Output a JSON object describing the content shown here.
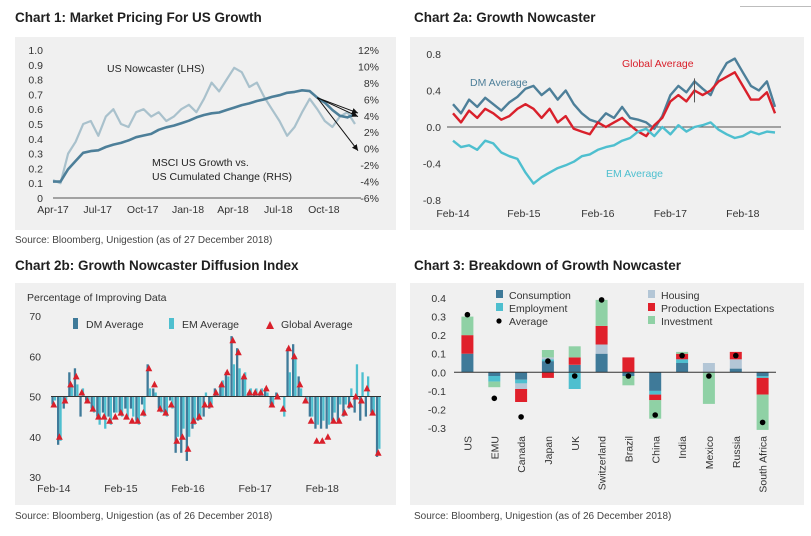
{
  "chart_data": [
    {
      "id": "c1",
      "type": "line",
      "title": "Chart 1: Market Pricing For US Growth",
      "source": "Source: Bloomberg, Unigestion (as of 27 December 2018)",
      "left_ticks": [
        "1.0",
        "0.9",
        "0.8",
        "0.7",
        "0.6",
        "0.5",
        "0.4",
        "0.3",
        "0.2",
        "0.1",
        "0"
      ],
      "right_ticks": [
        "12%",
        "10%",
        "8%",
        "6%",
        "4%",
        "2%",
        "0%",
        "-2%",
        "-4%",
        "-6%"
      ],
      "x_ticks": [
        "Apr-17",
        "Jul-17",
        "Oct-17",
        "Jan-18",
        "Apr-18",
        "Jul-18",
        "Oct-18"
      ],
      "ylim_left": [
        0,
        1.0
      ],
      "ylim_right": [
        -6,
        12
      ],
      "x_range": [
        0,
        100
      ],
      "x_tick_positions": [
        0,
        14.8,
        29.7,
        44.7,
        59.6,
        74.6,
        89.7
      ],
      "annotations": {
        "nowcaster": "US Nowcaster (LHS)",
        "msci_line1": "MSCI US Growth vs.",
        "msci_line2": "US Cumulated Change (RHS)"
      },
      "series": [
        {
          "name": "US Nowcaster (LHS)",
          "axis": "left",
          "color": "#a9c1cc",
          "x": [
            0,
            2.5,
            5,
            7.5,
            10,
            12.5,
            15,
            17.5,
            20,
            22.5,
            25,
            27.5,
            30,
            32.5,
            35,
            37.5,
            40,
            42.5,
            45,
            47.5,
            50,
            52.5,
            55,
            57.5,
            60,
            62.5,
            65,
            67.5,
            70,
            72.5,
            75,
            77.5,
            80,
            82.5,
            85,
            87.5,
            90,
            92.5,
            95,
            97.5,
            100
          ],
          "y": [
            0.12,
            0.1,
            0.3,
            0.38,
            0.5,
            0.52,
            0.42,
            0.55,
            0.6,
            0.5,
            0.48,
            0.58,
            0.6,
            0.55,
            0.58,
            0.52,
            0.55,
            0.6,
            0.63,
            0.58,
            0.67,
            0.78,
            0.72,
            0.8,
            0.88,
            0.85,
            0.75,
            0.78,
            0.68,
            0.6,
            0.52,
            0.42,
            0.48,
            0.58,
            0.67,
            0.6,
            0.52,
            0.48,
            0.55,
            0.58,
            0.5
          ]
        },
        {
          "name": "MSCI US Growth vs. US Cumulated Change (RHS)",
          "axis": "right",
          "color": "#4d7f99",
          "x": [
            0,
            2.5,
            5,
            7.5,
            10,
            12.5,
            15,
            17.5,
            20,
            22.5,
            25,
            27.5,
            30,
            32.5,
            35,
            37.5,
            40,
            42.5,
            45,
            47.5,
            50,
            52.5,
            55,
            57.5,
            60,
            62.5,
            65,
            67.5,
            70,
            72.5,
            75,
            77.5,
            80,
            82.5,
            85,
            87.5,
            90,
            92.5,
            95,
            97.5,
            100
          ],
          "y": [
            -4.0,
            -4.0,
            -2.5,
            -1.5,
            -0.5,
            -0.3,
            -0.2,
            0.2,
            0.5,
            0.7,
            1.0,
            1.4,
            1.6,
            1.8,
            2.3,
            2.6,
            2.8,
            3.1,
            3.4,
            3.8,
            4.1,
            4.3,
            4.4,
            4.7,
            5.0,
            5.3,
            5.5,
            5.8,
            6.0,
            6.3,
            6.5,
            6.8,
            6.9,
            7.1,
            7.0,
            6.2,
            5.6,
            4.7,
            4.0,
            3.8,
            4.2
          ]
        }
      ]
    },
    {
      "id": "c2a",
      "type": "line",
      "title": "Chart 2a: Growth Nowcaster",
      "ylim": [
        -0.8,
        0.8
      ],
      "y_ticks": [
        "0.8",
        "0.4",
        "0.0",
        "-0.4",
        "-0.8"
      ],
      "x_ticks": [
        "Feb-14",
        "Feb-15",
        "Feb-16",
        "Feb-17",
        "Feb-18"
      ],
      "x_range": [
        0,
        100
      ],
      "x_tick_positions": [
        0,
        22,
        45,
        67.5,
        90
      ],
      "series": [
        {
          "name": "DM Average",
          "color": "#4d7f99",
          "x": [
            0,
            2.5,
            5,
            7.5,
            10,
            12.5,
            15,
            17.5,
            20,
            22.5,
            25,
            27.5,
            30,
            32.5,
            35,
            37.5,
            40,
            42.5,
            45,
            47.5,
            50,
            52.5,
            55,
            57.5,
            60,
            62.5,
            65,
            67.5,
            70,
            72.5,
            75,
            77.5,
            80,
            82.5,
            85,
            87.5,
            90,
            92.5,
            95,
            97.5,
            100
          ],
          "y": [
            0.25,
            0.15,
            0.3,
            0.22,
            0.32,
            0.25,
            0.18,
            0.27,
            0.33,
            0.42,
            0.45,
            0.35,
            0.42,
            0.3,
            0.4,
            0.25,
            0.15,
            0.08,
            0.05,
            0.15,
            0.1,
            0.22,
            0.1,
            0.08,
            0.05,
            -0.02,
            0.12,
            0.35,
            0.45,
            0.38,
            0.5,
            0.42,
            0.35,
            0.55,
            0.7,
            0.75,
            0.6,
            0.45,
            0.4,
            0.5,
            0.22
          ]
        },
        {
          "name": "Global Average",
          "color": "#d9202b",
          "x": [
            0,
            2.5,
            5,
            7.5,
            10,
            12.5,
            15,
            17.5,
            20,
            22.5,
            25,
            27.5,
            30,
            32.5,
            35,
            37.5,
            40,
            42.5,
            45,
            47.5,
            50,
            52.5,
            55,
            57.5,
            60,
            62.5,
            65,
            67.5,
            70,
            72.5,
            75,
            77.5,
            80,
            82.5,
            85,
            87.5,
            90,
            92.5,
            95,
            97.5,
            100
          ],
          "y": [
            0.15,
            0.05,
            0.18,
            0.1,
            0.2,
            0.15,
            0.08,
            0.12,
            0.2,
            0.25,
            0.2,
            0.1,
            0.2,
            0.05,
            0.12,
            -0.02,
            -0.05,
            -0.08,
            0.05,
            0.0,
            0.05,
            0.1,
            0.02,
            -0.05,
            -0.1,
            0.02,
            0.1,
            0.28,
            0.35,
            0.28,
            0.4,
            0.35,
            0.4,
            0.5,
            0.55,
            0.6,
            0.45,
            0.3,
            0.3,
            0.38,
            0.15
          ]
        },
        {
          "name": "EM Average",
          "color": "#4ebfcf",
          "x": [
            0,
            2.5,
            5,
            7.5,
            10,
            12.5,
            15,
            17.5,
            20,
            22.5,
            25,
            27.5,
            30,
            32.5,
            35,
            37.5,
            40,
            42.5,
            45,
            47.5,
            50,
            52.5,
            55,
            57.5,
            60,
            62.5,
            65,
            67.5,
            70,
            72.5,
            75,
            77.5,
            80,
            82.5,
            85,
            87.5,
            90,
            92.5,
            95,
            97.5,
            100
          ],
          "y": [
            -0.15,
            -0.22,
            -0.2,
            -0.25,
            -0.15,
            -0.18,
            -0.28,
            -0.32,
            -0.35,
            -0.5,
            -0.62,
            -0.55,
            -0.5,
            -0.45,
            -0.42,
            -0.38,
            -0.32,
            -0.3,
            -0.25,
            -0.22,
            -0.2,
            -0.15,
            -0.12,
            -0.05,
            -0.02,
            -0.1,
            0.0,
            -0.08,
            0.02,
            -0.05,
            0.0,
            0.02,
            0.05,
            -0.03,
            -0.08,
            -0.12,
            -0.1,
            -0.05,
            -0.08,
            -0.05,
            -0.06
          ]
        }
      ]
    },
    {
      "id": "c2b",
      "type": "bar",
      "title": "Chart 2b: Growth Nowcaster Diffusion Index",
      "ylabel": "Percentage of Improving Data",
      "ylim": [
        30,
        70
      ],
      "baseline": 50,
      "y_ticks": [
        "70",
        "60",
        "50",
        "40",
        "30"
      ],
      "x_ticks": [
        "Feb-14",
        "Feb-15",
        "Feb-16",
        "Feb-17",
        "Feb-18"
      ],
      "x_tick_positions": [
        0,
        12,
        24,
        36,
        48
      ],
      "n": 59,
      "series": [
        {
          "name": "DM Average",
          "color": "#3f7a99",
          "values": [
            48,
            38,
            47,
            56,
            57,
            45,
            49,
            47,
            45,
            46,
            45,
            46,
            46,
            47,
            47,
            44,
            48,
            58,
            52,
            47,
            46,
            49,
            36,
            36,
            34,
            42,
            44,
            45,
            47,
            52,
            53,
            56,
            65,
            62,
            55,
            51,
            51,
            51,
            52,
            48,
            51,
            50,
            62,
            63,
            55,
            50,
            45,
            42,
            42,
            42,
            44,
            44,
            45,
            47,
            46,
            44,
            45,
            46,
            35
          ]
        },
        {
          "name": "EM Average",
          "color": "#4ebfcf",
          "values": [
            49,
            39,
            49,
            53,
            53,
            52,
            49,
            46,
            43,
            42,
            43,
            46,
            45,
            45,
            45,
            43,
            45,
            52,
            51,
            46,
            45,
            47,
            40,
            42,
            40,
            43,
            45,
            51,
            48,
            51,
            54,
            55,
            58,
            57,
            56,
            52,
            52,
            52,
            51,
            48,
            50,
            45,
            56,
            60,
            52,
            49,
            45,
            43,
            44,
            43,
            46,
            48,
            48,
            52,
            58,
            56,
            55,
            46,
            37
          ]
        },
        {
          "name": "Global Average",
          "color": "#d9202b",
          "values": [
            48,
            40,
            49,
            53,
            55,
            51,
            49,
            47,
            45,
            45,
            44,
            45,
            46,
            45,
            44,
            44,
            46,
            57,
            53,
            47,
            46,
            48,
            39,
            40,
            37,
            44,
            45,
            48,
            48,
            51,
            53,
            56,
            64,
            61,
            55,
            51,
            51,
            51,
            52,
            48,
            50,
            47,
            62,
            60,
            53,
            49,
            44,
            39,
            39,
            40,
            44,
            44,
            46,
            48,
            50,
            49,
            52,
            46,
            36
          ]
        }
      ]
    },
    {
      "id": "c3",
      "type": "bar",
      "title": "Chart 3: Breakdown of Growth Nowcaster",
      "source": "Source: Bloomberg, Unigestion (as of 26 December 2018)",
      "ylim": [
        -0.3,
        0.4
      ],
      "y_ticks": [
        "0.4",
        "0.3",
        "0.2",
        "0.1",
        "0.0",
        "-0.1",
        "-0.2",
        "-0.3"
      ],
      "categories": [
        "US",
        "EMU",
        "Canada",
        "Japan",
        "UK",
        "Switzerland",
        "Brazil",
        "China",
        "India",
        "Mexico",
        "Russia",
        "South Africa"
      ],
      "series": [
        {
          "name": "Consumption",
          "color": "#3f7a99",
          "values": [
            0.1,
            -0.02,
            -0.04,
            0.06,
            0.04,
            0.1,
            -0.02,
            -0.1,
            0.05,
            0.0,
            0.02,
            -0.02
          ]
        },
        {
          "name": "Employment",
          "color": "#4ebfcf",
          "values": [
            0.0,
            -0.03,
            -0.02,
            0.01,
            -0.09,
            0.0,
            0.0,
            -0.02,
            0.02,
            0.0,
            0.0,
            -0.01
          ]
        },
        {
          "name": "Housing",
          "color": "#b3c6d6",
          "values": [
            0.0,
            0.0,
            -0.03,
            0.01,
            0.0,
            0.05,
            0.0,
            0.0,
            0.0,
            0.05,
            0.05,
            0.0
          ]
        },
        {
          "name": "Production Expectations",
          "color": "#e0202b",
          "values": [
            0.1,
            0.0,
            -0.07,
            -0.03,
            0.04,
            0.1,
            0.08,
            -0.03,
            0.03,
            0.0,
            0.04,
            -0.09
          ]
        },
        {
          "name": "Investment",
          "color": "#8fd1a5",
          "values": [
            0.1,
            -0.03,
            0.0,
            0.04,
            0.06,
            0.14,
            -0.05,
            -0.1,
            0.01,
            -0.17,
            0.0,
            -0.19
          ]
        },
        {
          "name": "Average",
          "color": "#000000",
          "values": [
            0.31,
            -0.14,
            -0.24,
            0.06,
            -0.02,
            0.39,
            -0.02,
            -0.23,
            0.09,
            -0.02,
            0.09,
            -0.27
          ]
        }
      ]
    }
  ],
  "chart2a_source": "Source: Bloomberg, Unigestion (as of 27 December 2018)",
  "chart2b_source": "Source: Bloomberg, Unigestion (as of 26 December 2018)"
}
